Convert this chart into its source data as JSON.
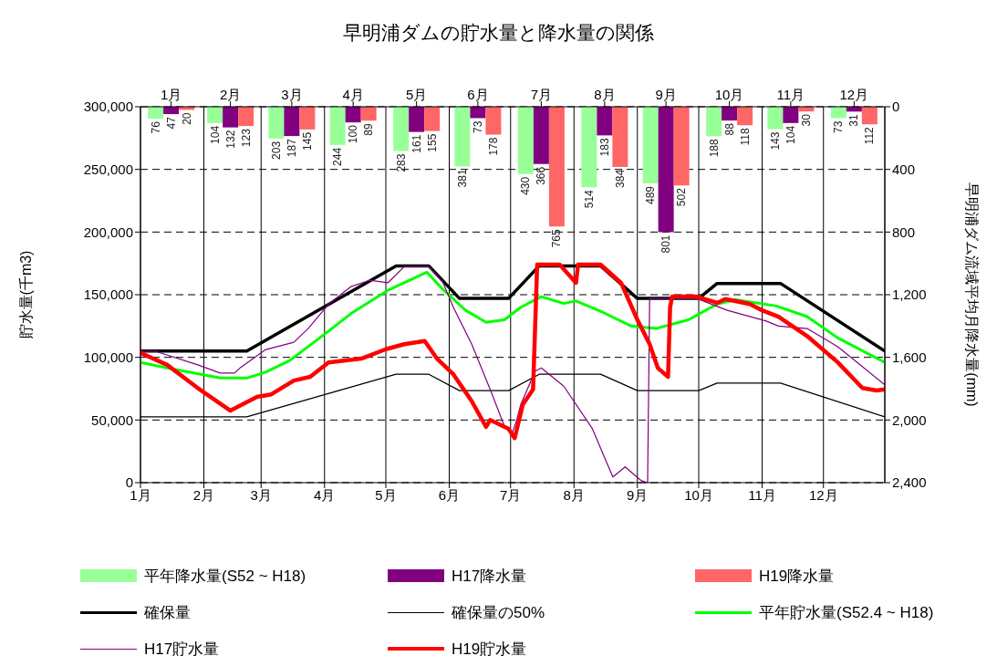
{
  "chart_data": {
    "type": "bar",
    "title": "早明浦ダムの貯水量と降水量の関係",
    "ylabel": "貯水量(千m3)",
    "y2label": "早明浦ダム流域平均月降水量(mm)",
    "x": [
      "--01-16",
      "--02-14",
      "--03-16",
      "--04-15",
      "--05-16",
      "--06-15",
      "--07-16",
      "--08-16",
      "--09-15",
      "--10-16",
      "--11-15",
      "--12-16"
    ],
    "x2lim": [
      "--01-01",
      "--12-31"
    ],
    "x2ticks": [
      {
        "value": "--01-16",
        "label": "1月"
      },
      {
        "value": "--02-14",
        "label": "2月"
      },
      {
        "value": "--03-16",
        "label": "3月"
      },
      {
        "value": "--04-15",
        "label": "4月"
      },
      {
        "value": "--05-16",
        "label": "5月"
      },
      {
        "value": "--06-15",
        "label": "6月"
      },
      {
        "value": "--07-16",
        "label": "7月"
      },
      {
        "value": "--08-16",
        "label": "8月"
      },
      {
        "value": "--09-15",
        "label": "9月"
      },
      {
        "value": "--10-16",
        "label": "10月"
      },
      {
        "value": "--11-15",
        "label": "11月"
      },
      {
        "value": "--12-16",
        "label": "12月"
      }
    ],
    "xlim": [
      "--01-01",
      "--12-31"
    ],
    "xticks": [
      {
        "value": "--01-01",
        "label": "1月"
      },
      {
        "value": "--02-01",
        "label": "2月"
      },
      {
        "value": "--03-01",
        "label": "3月"
      },
      {
        "value": "--04-01",
        "label": "4月"
      },
      {
        "value": "--05-01",
        "label": "5月"
      },
      {
        "value": "--06-01",
        "label": "6月"
      },
      {
        "value": "--07-01",
        "label": "7月"
      },
      {
        "value": "--08-01",
        "label": "8月"
      },
      {
        "value": "--09-01",
        "label": "9月"
      },
      {
        "value": "--10-01",
        "label": "10月"
      },
      {
        "value": "--11-01",
        "label": "11月"
      },
      {
        "value": "--12-01",
        "label": "12月"
      }
    ],
    "ylim": [
      0,
      300000
    ],
    "yticks": [
      0,
      {
        "value": 50000,
        "label": "50,000"
      },
      {
        "value": 100000,
        "label": "100,000"
      },
      {
        "value": 150000,
        "label": "150,000"
      },
      {
        "value": 200000,
        "label": "200,000"
      },
      {
        "value": 250000,
        "label": "250,000"
      },
      {
        "value": 300000,
        "label": "300,000"
      }
    ],
    "y2lim": [
      2400,
      0
    ],
    "y2ticks": [
      0,
      400,
      800,
      {
        "value": 1200,
        "label": "1,200"
      },
      {
        "value": 1600,
        "label": "1,600"
      },
      {
        "value": 2000,
        "label": "2,000"
      },
      {
        "value": 2400,
        "label": "2,400"
      }
    ],
    "grid": true,
    "legend": "bottom",
    "marker": "none",
    "series": [
      {
        "name": "平年降水量(S52 ~ H18)",
        "color": "#99ff99",
        "axis": "y2",
        "values": [
          76,
          104,
          203,
          244,
          283,
          381,
          430,
          514,
          489,
          188,
          143,
          73
        ],
        "value_labels": [
          "76",
          "104",
          "203",
          "244",
          "283",
          "381",
          "430",
          "514",
          "489",
          "188",
          "143",
          "73"
        ]
      },
      {
        "name": "H17降水量",
        "color": "#800080",
        "axis": "y2",
        "values": [
          47,
          132,
          187,
          100,
          161,
          73,
          366,
          183,
          801,
          88,
          104,
          31
        ],
        "value_labels": [
          "47",
          "132",
          "187",
          "100",
          "161",
          "73",
          "366",
          "183",
          "801",
          "88",
          "104",
          "31"
        ]
      },
      {
        "name": "H19降水量",
        "color": "#ff6666",
        "axis": "y2",
        "values": [
          20,
          123,
          145,
          89,
          155,
          178,
          765,
          384,
          502,
          118,
          30,
          112
        ],
        "value_labels": [
          "20",
          "123",
          "145",
          "89",
          "155",
          "178",
          "765",
          "384",
          "502",
          "118",
          "30",
          "112"
        ]
      },
      {
        "type": "line",
        "name": "確保量",
        "color": "#000000",
        "x": [
          "--01-01",
          "--02-22",
          "--05-06",
          "--05-22",
          "--06-06",
          "--06-30",
          "--07-15",
          "--08-14",
          "--09-01",
          "--10-01",
          "--10-10",
          "--11-10",
          "--12-31"
        ],
        "values": [
          105000,
          105000,
          173000,
          173000,
          147000,
          147000,
          173000,
          173000,
          147000,
          147000,
          159000,
          159000,
          105000
        ]
      },
      {
        "type": "line",
        "name": "確保量の50%",
        "color": "#000000",
        "x": [
          "--01-01",
          "--02-22",
          "--05-06",
          "--05-22",
          "--06-06",
          "--06-30",
          "--07-15",
          "--08-14",
          "--09-01",
          "--10-01",
          "--10-10",
          "--11-10",
          "--12-31"
        ],
        "values": [
          52500,
          52500,
          86500,
          86500,
          73500,
          73500,
          86500,
          86500,
          73500,
          73500,
          79500,
          79500,
          52500
        ]
      },
      {
        "type": "line",
        "name": "平年貯水量(S52.4 ~ H18)",
        "color": "#00ff00",
        "x": [
          "--01-01",
          "--01-14",
          "--02-09",
          "--02-22",
          "--03-03",
          "--03-15",
          "--04-03",
          "--04-14",
          "--05-02",
          "--05-21",
          "--05-29",
          "--06-09",
          "--06-19",
          "--06-28",
          "--07-06",
          "--07-16",
          "--07-27",
          "--08-02",
          "--08-15",
          "--08-29",
          "--09-10",
          "--09-26",
          "--10-10",
          "--10-19",
          "--11-08",
          "--11-23",
          "--12-08",
          "--12-31"
        ],
        "values": [
          96000,
          91500,
          83500,
          83500,
          88000,
          97500,
          121000,
          135000,
          153500,
          168000,
          154000,
          137500,
          128000,
          130000,
          140000,
          148500,
          143000,
          145000,
          136000,
          125000,
          123000,
          130000,
          142500,
          146000,
          141000,
          132500,
          115500,
          96000
        ]
      },
      {
        "type": "line",
        "name": "H17貯水量",
        "color": "#800080",
        "x": [
          "--01-01",
          "--01-08",
          "--01-29",
          "--02-09",
          "--02-16",
          "--02-19",
          "--03-03",
          "--03-17",
          "--03-24",
          "--04-03",
          "--04-14",
          "--04-23",
          "--05-02",
          "--05-10",
          "--05-22",
          "--05-29",
          "--06-03",
          "--06-12",
          "--06-21",
          "--06-28",
          "--07-02",
          "--07-04",
          "--07-06",
          "--07-13",
          "--07-16",
          "--07-27",
          "--08-10",
          "--08-20",
          "--08-26",
          "--09-03",
          "--09-06",
          "--09-07",
          "--09-30",
          "--10-15",
          "--11-03",
          "--11-09",
          "--11-23",
          "--12-08",
          "--12-31"
        ],
        "values": [
          105000,
          105000,
          94000,
          87500,
          87500,
          92000,
          106000,
          112000,
          123000,
          142500,
          156500,
          161500,
          159500,
          172500,
          172500,
          159500,
          140000,
          110500,
          74500,
          45000,
          40500,
          50000,
          62500,
          89000,
          91500,
          77000,
          43000,
          4500,
          12500,
          1500,
          0,
          147000,
          147000,
          137500,
          129000,
          125000,
          123000,
          108500,
          78000
        ]
      },
      {
        "type": "line",
        "name": "H19貯水量",
        "color": "#ff0000",
        "x": [
          "--01-01",
          "--01-14",
          "--01-29",
          "--02-14",
          "--02-27",
          "--03-06",
          "--03-17",
          "--03-25",
          "--04-03",
          "--04-19",
          "--05-01",
          "--05-10",
          "--05-20",
          "--05-26",
          "--06-03",
          "--06-12",
          "--06-19",
          "--06-21",
          "--06-30",
          "--07-03",
          "--07-07",
          "--07-12",
          "--07-14",
          "--07-25",
          "--08-02",
          "--08-03",
          "--08-14",
          "--08-24",
          "--09-01",
          "--09-07",
          "--09-11",
          "--09-16",
          "--09-17",
          "--09-18",
          "--09-30",
          "--10-10",
          "--10-14",
          "--10-26",
          "--11-01",
          "--11-09",
          "--11-23",
          "--12-08",
          "--12-20",
          "--12-27",
          "--12-31"
        ],
        "values": [
          103500,
          94000,
          75500,
          57500,
          68500,
          70500,
          81500,
          84500,
          96000,
          99000,
          106500,
          110500,
          113000,
          99000,
          86500,
          65000,
          44500,
          50000,
          43000,
          35500,
          62500,
          74500,
          174000,
          174000,
          159500,
          174000,
          174000,
          159500,
          130000,
          110500,
          91500,
          84500,
          140000,
          148500,
          148500,
          143500,
          146500,
          142500,
          137500,
          132500,
          117000,
          96000,
          75500,
          73500,
          74500
        ]
      }
    ]
  }
}
